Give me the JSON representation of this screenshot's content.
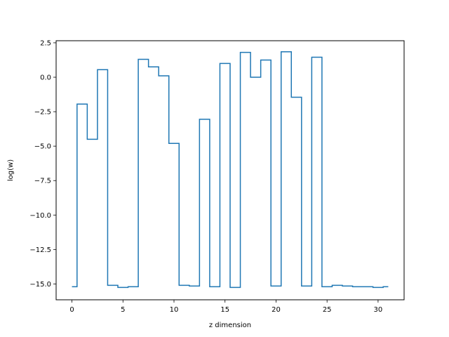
{
  "chart_data": {
    "type": "line",
    "drawstyle": "steps-mid",
    "title": "",
    "xlabel": "z dimension",
    "ylabel": "log(w)",
    "xlim": [
      -1.55,
      32.55
    ],
    "ylim": [
      -16.15,
      2.65
    ],
    "xticks": [
      0,
      5,
      10,
      15,
      20,
      25,
      30
    ],
    "xtick_labels": [
      "0",
      "5",
      "10",
      "15",
      "20",
      "25",
      "30"
    ],
    "yticks": [
      2.5,
      0.0,
      -2.5,
      -5.0,
      -7.5,
      -10.0,
      -12.5,
      -15.0
    ],
    "ytick_labels": [
      "2.5",
      "0.0",
      "−2.5",
      "−5.0",
      "−7.5",
      "−10.0",
      "−12.5",
      "−15.0"
    ],
    "grid": false,
    "legend": "none",
    "series": [
      {
        "color": "#1f77b4",
        "x": [
          0,
          1,
          2,
          3,
          4,
          5,
          6,
          7,
          8,
          9,
          10,
          11,
          12,
          13,
          14,
          15,
          16,
          17,
          18,
          19,
          20,
          21,
          22,
          23,
          24,
          25,
          26,
          27,
          28,
          29,
          30,
          31
        ],
        "values": [
          -15.2,
          -1.95,
          -4.5,
          0.55,
          -15.1,
          -15.25,
          -15.2,
          1.3,
          0.75,
          0.1,
          -4.8,
          -15.1,
          -15.15,
          -3.05,
          -15.2,
          1.0,
          -15.25,
          1.8,
          0.0,
          1.25,
          -15.15,
          1.85,
          -1.45,
          -15.15,
          1.45,
          -15.2,
          -15.1,
          -15.15,
          -15.2,
          -15.2,
          -15.25,
          -15.2
        ]
      }
    ]
  }
}
